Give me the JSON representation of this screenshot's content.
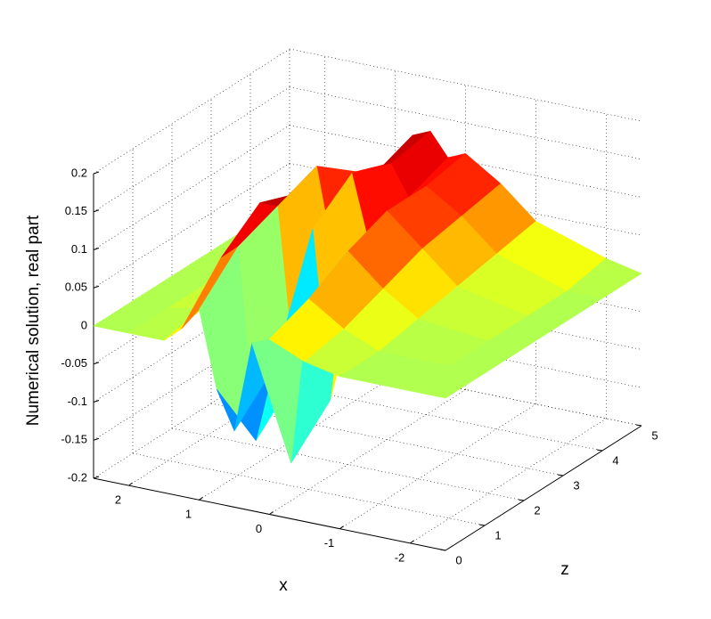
{
  "chart_data": {
    "type": "surface",
    "xlabel": "x",
    "ylabel": "Numerical solution, real part",
    "zlabel": "z",
    "x": [
      2.5,
      2,
      1.5,
      1.25,
      1,
      0.75,
      0.5,
      0.25,
      0,
      -0.5,
      -1,
      -2,
      -2.5
    ],
    "z": [
      0,
      1,
      2,
      3,
      4,
      5
    ],
    "values": [
      [
        0,
        0,
        0,
        0.02,
        0.05,
        -0.05,
        -0.1,
        0.02,
        0.03,
        0.01,
        0,
        0,
        0
      ],
      [
        0,
        0,
        0.01,
        0.08,
        0.1,
        -0.15,
        -0.05,
        -0.17,
        0.05,
        0.02,
        0,
        0,
        0
      ],
      [
        0,
        0,
        0.02,
        0.12,
        0.12,
        -0.1,
        0.1,
        -0.12,
        0.08,
        0.04,
        0.01,
        0,
        0
      ],
      [
        0,
        0,
        0.03,
        0.1,
        0.14,
        0.02,
        0.14,
        0.05,
        0.1,
        0.06,
        0.02,
        0,
        0
      ],
      [
        0,
        0,
        0.02,
        0.08,
        0.1,
        0.1,
        0.12,
        0.08,
        0.1,
        0.07,
        0.03,
        0,
        0
      ],
      [
        0,
        0,
        0.01,
        0.05,
        0.08,
        0.12,
        0.13,
        0.1,
        0.11,
        0.08,
        0.04,
        0.01,
        0
      ]
    ],
    "colormap": "jet",
    "xlim": [
      -2.5,
      2.5
    ],
    "xticks": [
      -2,
      -1,
      0,
      1,
      2
    ],
    "zlim": [
      0,
      5
    ],
    "zticks": [
      0,
      1,
      2,
      3,
      4,
      5
    ],
    "ylim": [
      -0.2,
      0.2
    ],
    "yticks": [
      -0.2,
      -0.15,
      -0.1,
      -0.05,
      0,
      0.05,
      0.1,
      0.15,
      0.2
    ],
    "grid": true
  }
}
